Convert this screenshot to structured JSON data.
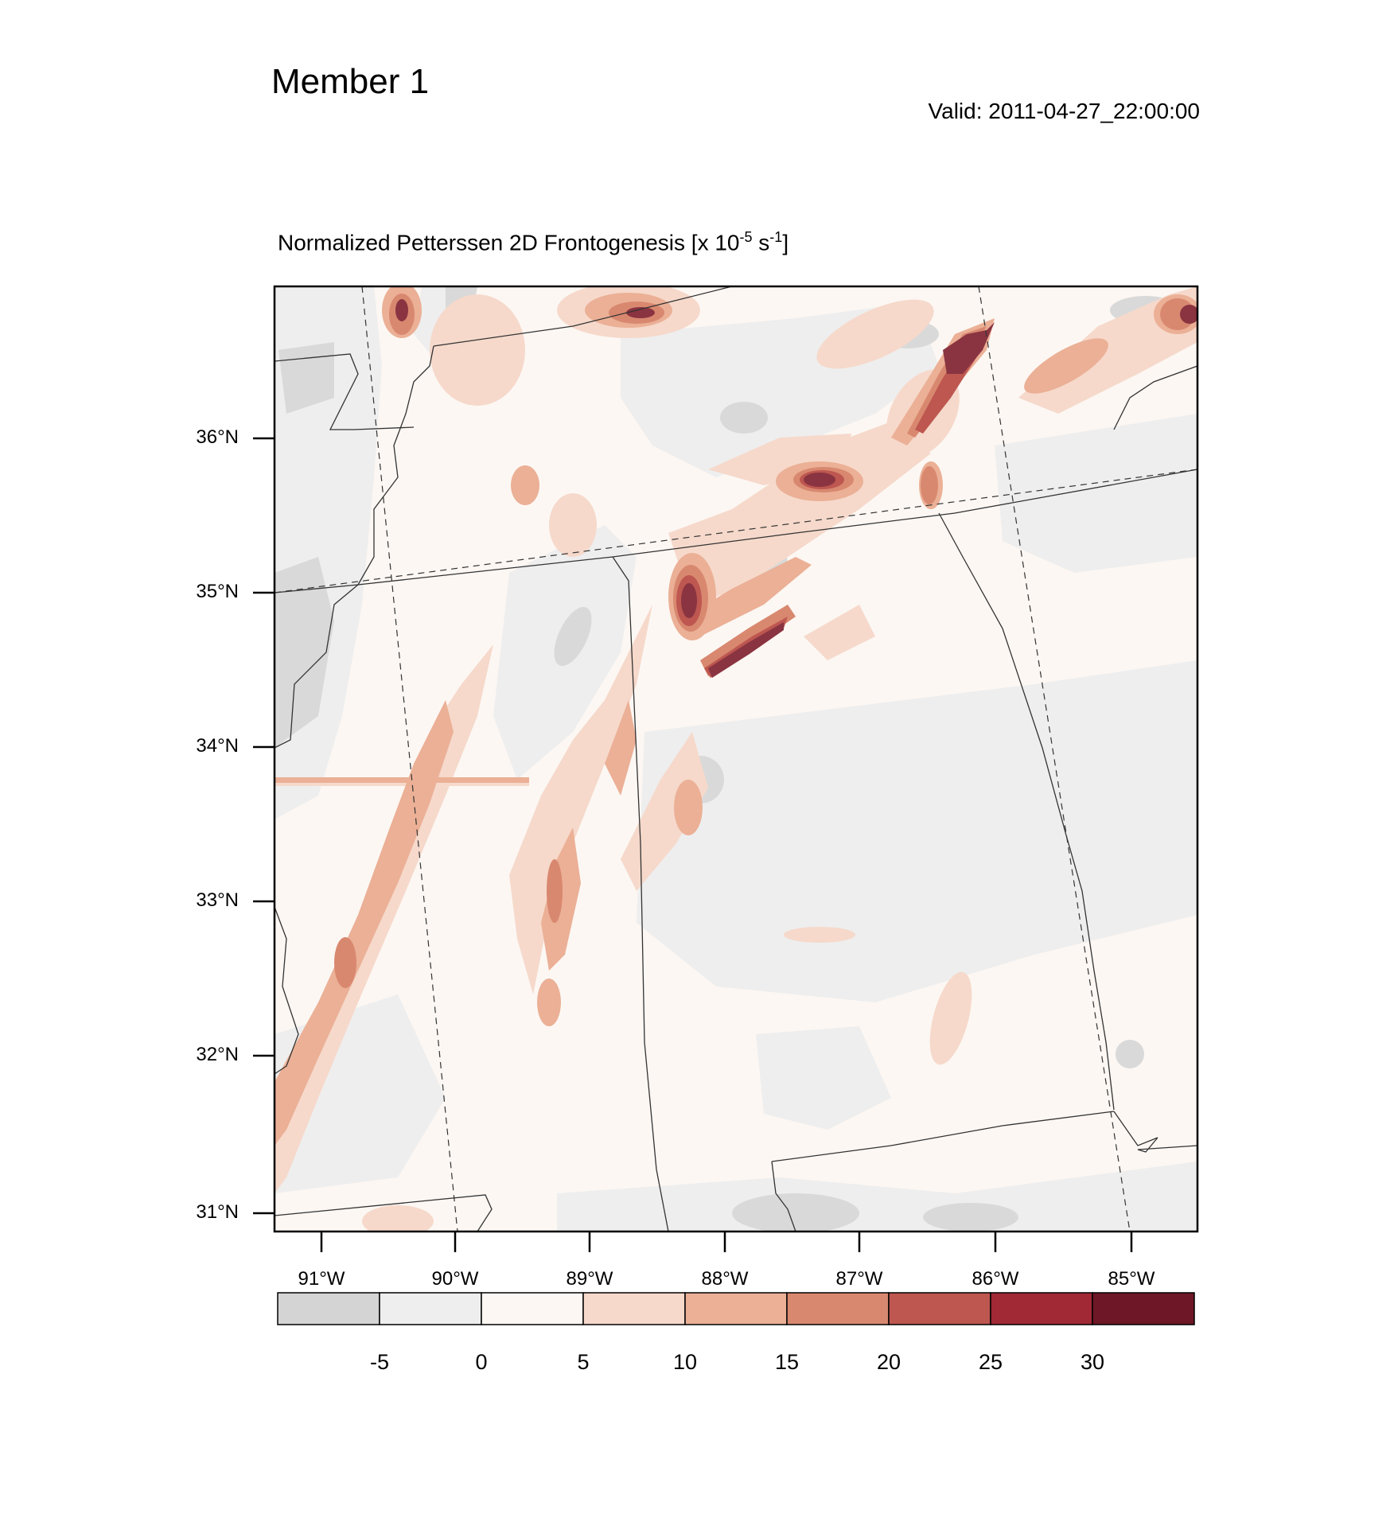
{
  "header": {
    "member": "Member 1",
    "valid": "Valid: 2011-04-27_22:00:00"
  },
  "plot": {
    "title_main": "Normalized Petterssen 2D Frontogenesis [x 10",
    "title_exp1": "-5",
    "title_mid": " s",
    "title_exp2": "-1",
    "title_end": "]"
  },
  "axes": {
    "lat_labels": [
      "36°N",
      "35°N",
      "34°N",
      "33°N",
      "32°N",
      "31°N"
    ],
    "lon_labels": [
      "91°W",
      "90°W",
      "89°W",
      "88°W",
      "87°W",
      "86°W",
      "85°W"
    ]
  },
  "colorbar": {
    "labels": [
      "-5",
      "0",
      "5",
      "10",
      "15",
      "20",
      "25",
      "30"
    ],
    "colors": [
      "#d4d4d4",
      "#eeeeee",
      "#fcf7f3",
      "#f6d9cb",
      "#ebb096",
      "#d98870",
      "#bd5750",
      "#a02935",
      "#6e1726"
    ]
  },
  "map_colors": {
    "background": "#fcf7f3",
    "neg_light": "#eeeeee",
    "neg_dark": "#d9d9d9",
    "pos_10": "#f6d9cb",
    "pos_15": "#ebb096",
    "pos_20": "#d98870",
    "pos_25": "#bd5750",
    "pos_30": "#8a3441"
  }
}
